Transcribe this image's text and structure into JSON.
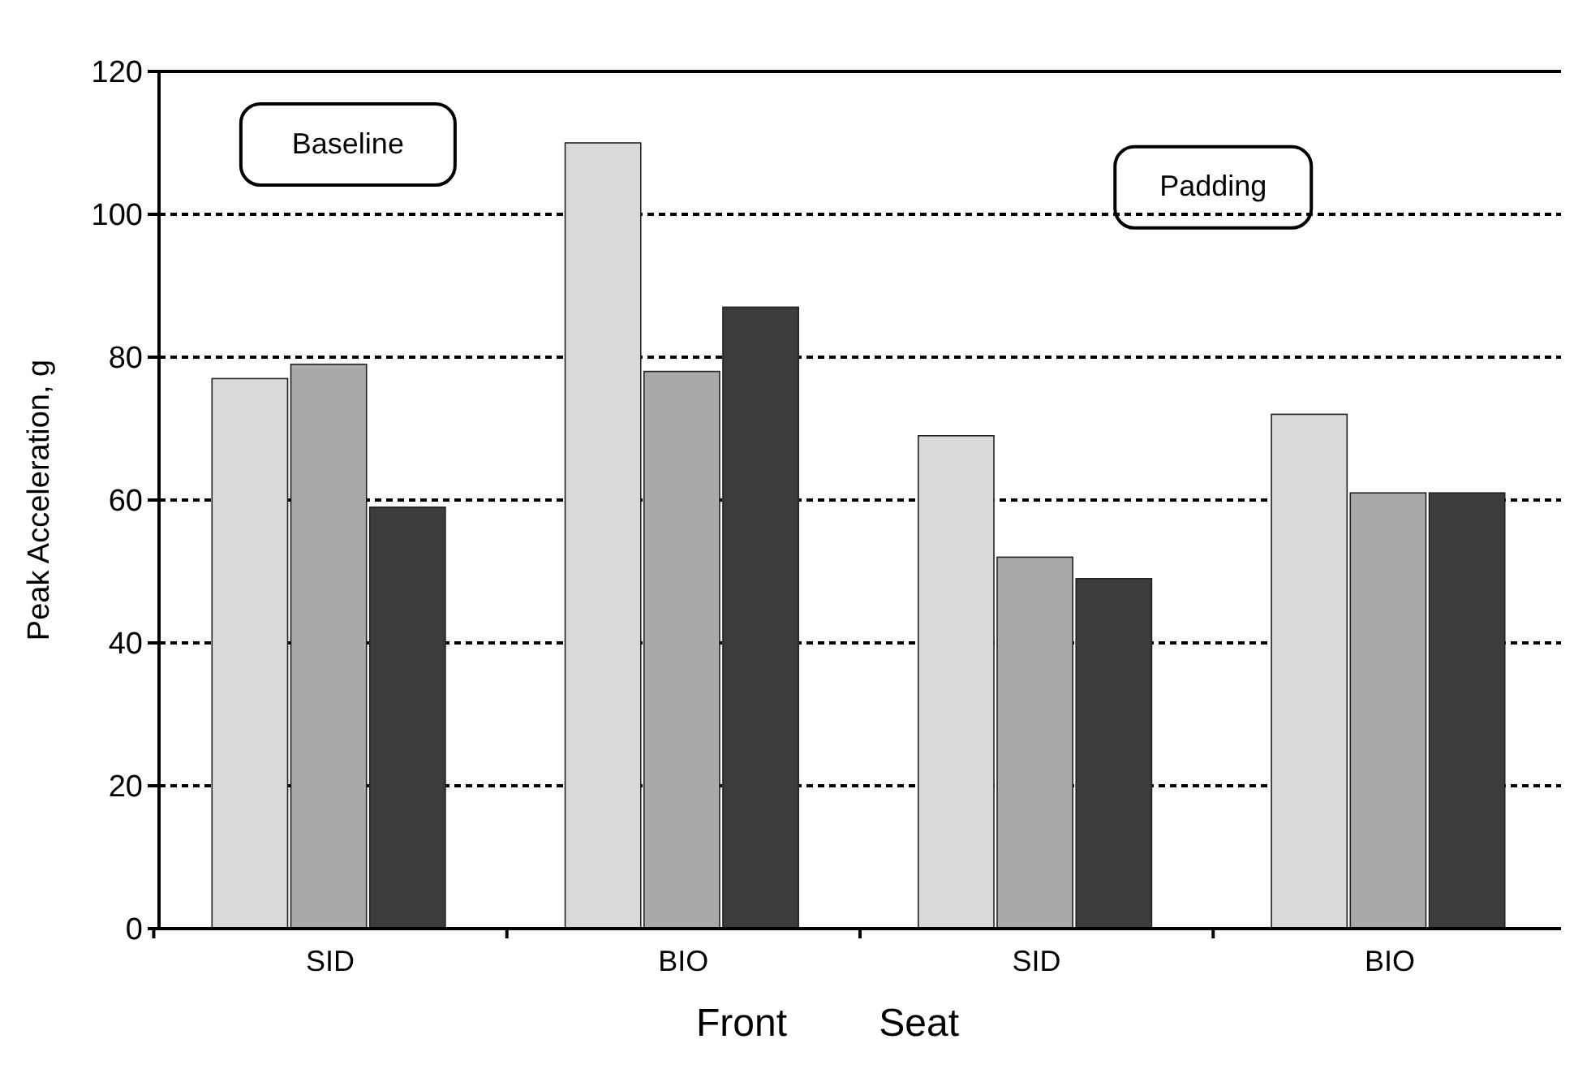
{
  "chart_data": {
    "type": "bar",
    "ylabel": "Peak Acceleration, g",
    "xlabel": "Front Seat",
    "categories": [
      "SID",
      "BIO",
      "SID",
      "BIO"
    ],
    "series": [
      {
        "color": "#d9d9d9",
        "values": [
          77,
          110,
          69,
          72
        ]
      },
      {
        "color": "#a9a9a9",
        "values": [
          79,
          78,
          52,
          61
        ]
      },
      {
        "color": "#3c3c3c",
        "values": [
          59,
          87,
          49,
          61
        ]
      }
    ],
    "ylim": [
      0,
      120
    ],
    "yticks": [
      0,
      20,
      40,
      60,
      80,
      100,
      120
    ],
    "grid": "y",
    "line_style": "dotted",
    "annotations": [
      "Baseline",
      "Padding"
    ]
  }
}
